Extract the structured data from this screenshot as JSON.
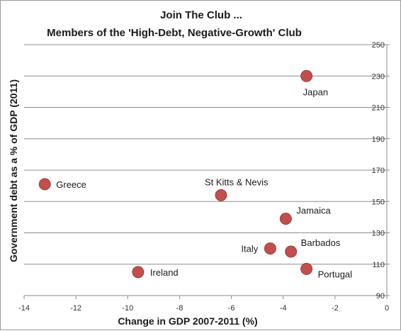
{
  "chart_data": {
    "type": "scatter",
    "title": "Join The Club ...",
    "subtitle": "Members of the 'High-Debt, Negative-Growth' Club",
    "xlabel": "Change in GDP 2007-2011 (%)",
    "ylabel": "Government debt as a % of GDP (2011)",
    "xlim": [
      -14,
      0
    ],
    "ylim": [
      90,
      250
    ],
    "xticks": [
      -14,
      -12,
      -10,
      -8,
      -6,
      -4,
      -2,
      0
    ],
    "yticks": [
      90,
      110,
      130,
      150,
      170,
      190,
      210,
      230,
      250
    ],
    "y_axis_side": "right",
    "grid": "horizontal",
    "marker_color": "#c0504d",
    "points": [
      {
        "label": "Japan",
        "x": -3.1,
        "y": 230
      },
      {
        "label": "Greece",
        "x": -13.2,
        "y": 161
      },
      {
        "label": "St Kitts & Nevis",
        "x": -6.4,
        "y": 154
      },
      {
        "label": "Jamaica",
        "x": -3.9,
        "y": 139
      },
      {
        "label": "Italy",
        "x": -4.5,
        "y": 120
      },
      {
        "label": "Barbados",
        "x": -3.7,
        "y": 118
      },
      {
        "label": "Ireland",
        "x": -9.6,
        "y": 105
      },
      {
        "label": "Portugal",
        "x": -3.1,
        "y": 107
      }
    ]
  }
}
